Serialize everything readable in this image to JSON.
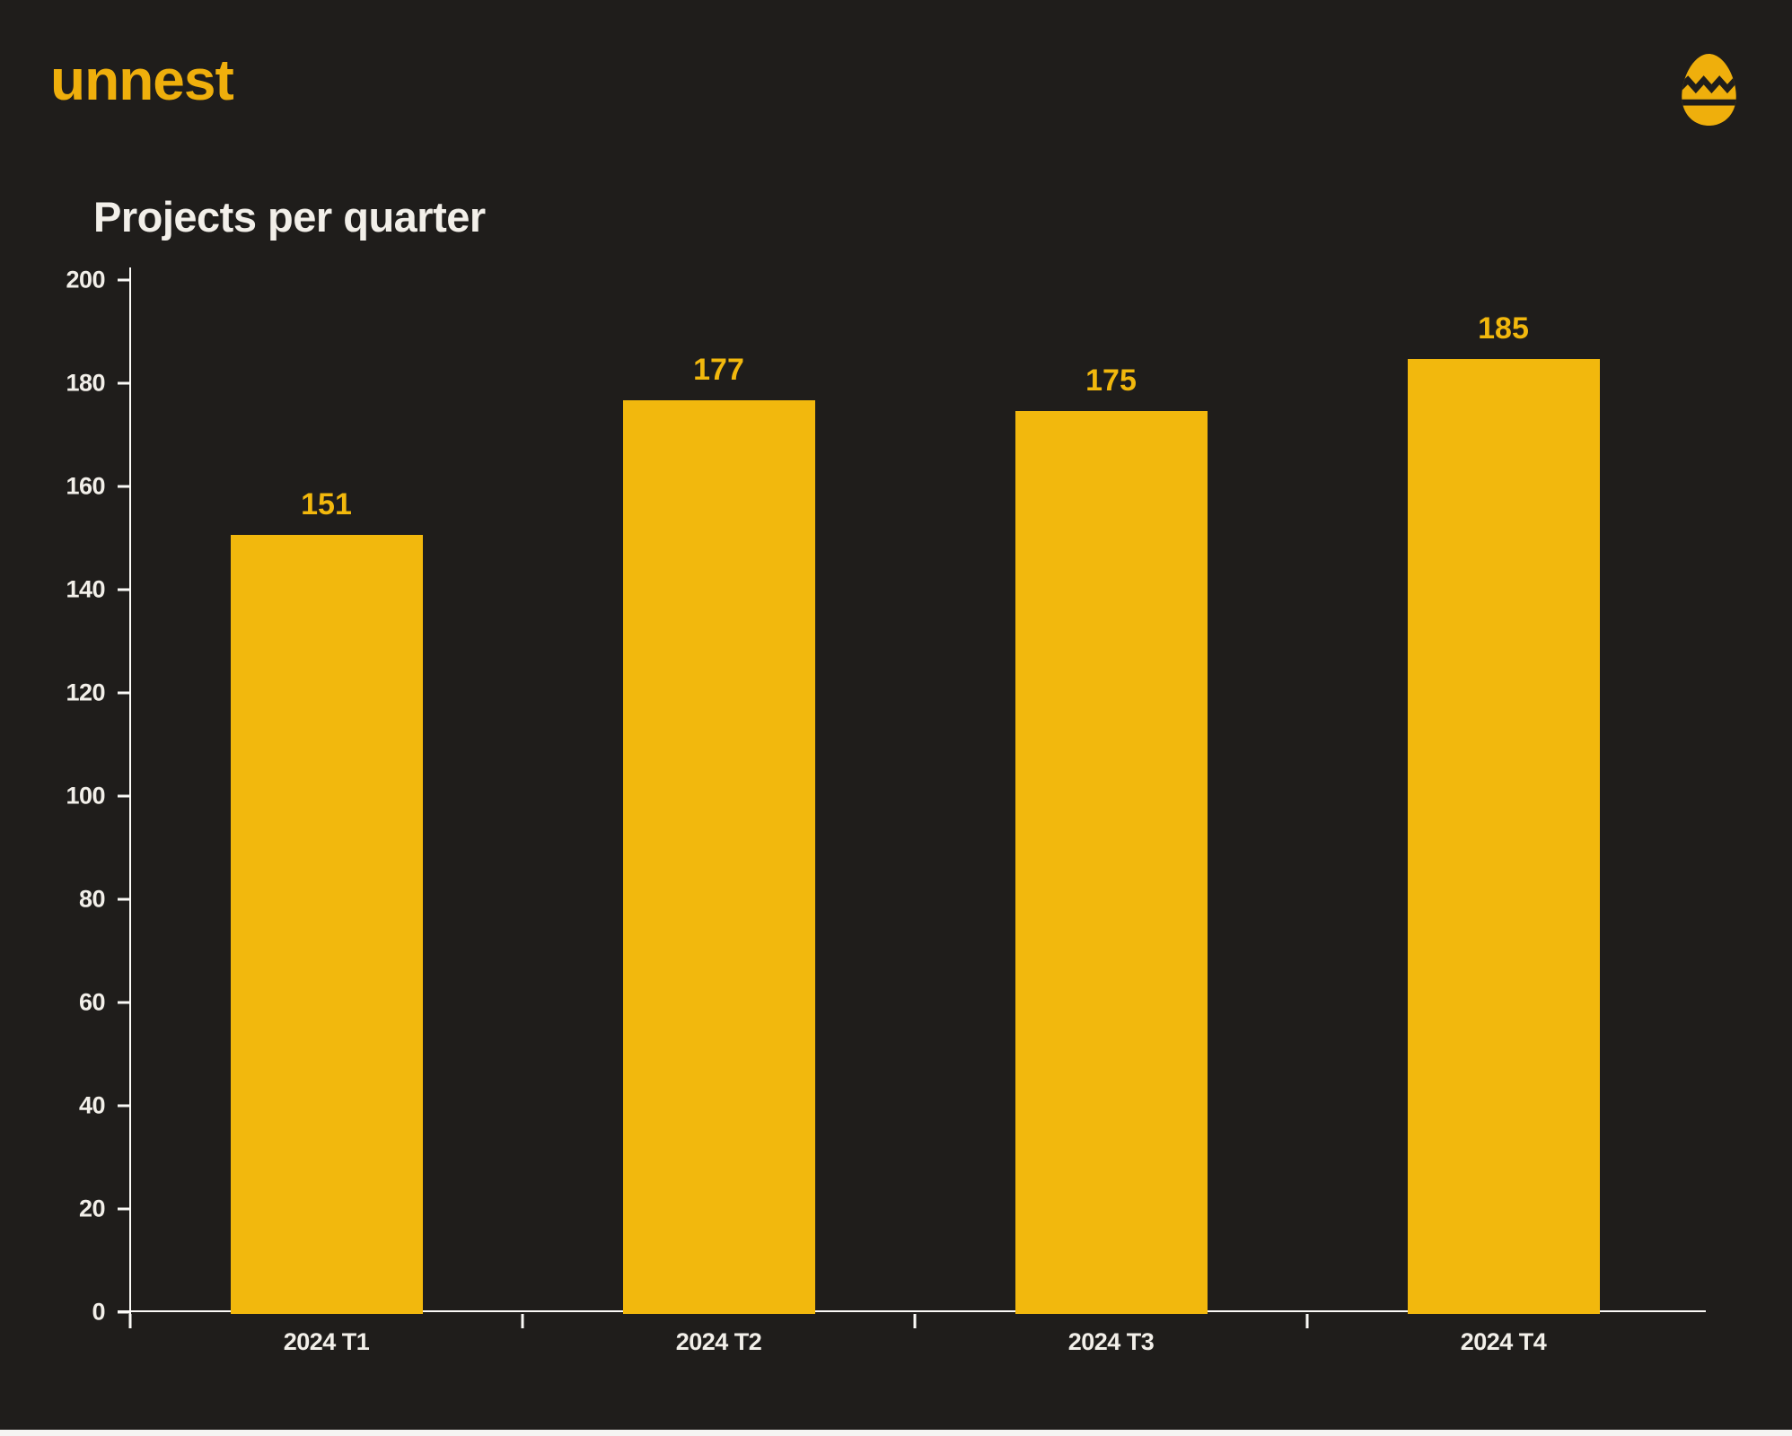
{
  "brand": {
    "name": "unnest",
    "logo_icon": "easter-egg-icon"
  },
  "colors": {
    "background": "#1F1D1B",
    "bar": "#F2B80D",
    "accent": "#EFAF0C",
    "title_text": "#F2EFE9",
    "axis_text": "#F2EFE9",
    "axis_line": "#FBFAF7",
    "bottom_strip": "#F5F4F2"
  },
  "chart_data": {
    "type": "bar",
    "title": "Projects per quarter",
    "categories": [
      "2024 T1",
      "2024 T2",
      "2024 T3",
      "2024 T4"
    ],
    "values": [
      151,
      177,
      175,
      185
    ],
    "value_labels": [
      "151",
      "177",
      "175",
      "185"
    ],
    "xlabel": "",
    "ylabel": "",
    "ylim": [
      0,
      200
    ],
    "yticks": [
      0,
      20,
      40,
      60,
      80,
      100,
      120,
      140,
      160,
      180,
      200
    ],
    "grid": false,
    "legend": null,
    "bar_color": "#F2B80D",
    "label_color": "#F2B80D"
  }
}
